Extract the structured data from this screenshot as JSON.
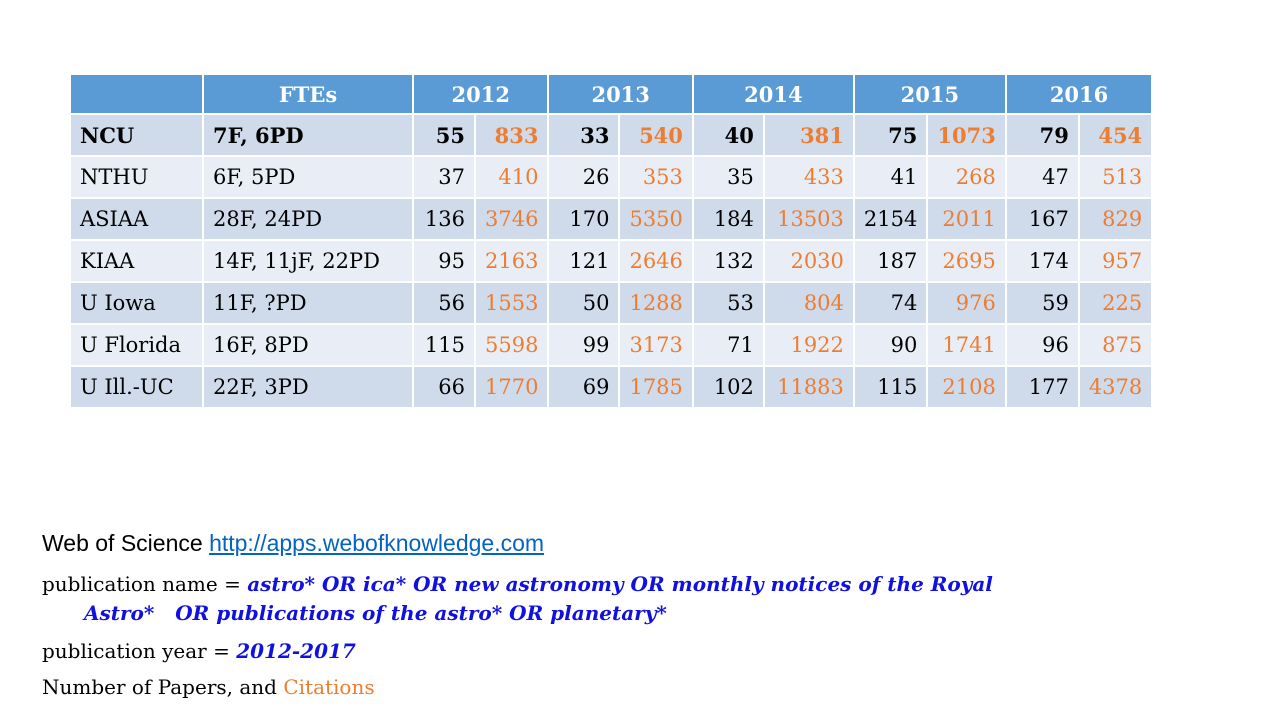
{
  "table": {
    "header": [
      "",
      "FTEs",
      "2012",
      "2013",
      "2014",
      "2015",
      "2016"
    ],
    "rows": [
      {
        "inst": "NCU",
        "fte": "7F, 6PD",
        "bold": true,
        "vals": [
          "55",
          "833",
          "33",
          "540",
          "40",
          "381",
          "75",
          "1073",
          "79",
          "454"
        ]
      },
      {
        "inst": "NTHU",
        "fte": "6F, 5PD",
        "bold": false,
        "vals": [
          "37",
          "410",
          "26",
          "353",
          "35",
          "433",
          "41",
          "268",
          "47",
          "513"
        ]
      },
      {
        "inst": "ASIAA",
        "fte": "28F, 24PD",
        "bold": false,
        "vals": [
          "136",
          "3746",
          "170",
          "5350",
          "184",
          "13503",
          "2154",
          "2011",
          "167",
          "829"
        ]
      },
      {
        "inst": "KIAA",
        "fte": "14F, 11jF, 22PD",
        "bold": false,
        "vals": [
          "95",
          "2163",
          "121",
          "2646",
          "132",
          "2030",
          "187",
          "2695",
          "174",
          "957"
        ]
      },
      {
        "inst": "U Iowa",
        "fte": "11F, ?PD",
        "bold": false,
        "vals": [
          "56",
          "1553",
          "50",
          "1288",
          "53",
          "804",
          "74",
          "976",
          "59",
          "225"
        ]
      },
      {
        "inst": "U Florida",
        "fte": "16F, 8PD",
        "bold": false,
        "vals": [
          "115",
          "5598",
          "99",
          "3173",
          "71",
          "1922",
          "90",
          "1741",
          "96",
          "875"
        ]
      },
      {
        "inst": "U Ill.-UC",
        "fte": "22F, 3PD",
        "bold": false,
        "vals": [
          "66",
          "1770",
          "69",
          "1785",
          "102",
          "11883",
          "115",
          "2108",
          "177",
          "4378"
        ]
      }
    ]
  },
  "notes": {
    "wos_label": "Web of Science",
    "wos_link": "http://apps.webofknowledge.com",
    "pubname_label": "publication name = ",
    "pubname_value_1": "astro* OR ica* OR new astronomy OR monthly notices of the Royal",
    "pubname_value_2": "Astro*   OR publications of the astro* OR planetary*",
    "pubyear_label": "publication year = ",
    "pubyear_value": "2012-2017",
    "count_label": "Number of Papers, and ",
    "count_citations": "Citations"
  },
  "colors": {
    "header_bg": "#5b9bd5",
    "row_dark": "#cfdaea",
    "row_light": "#e9eef6",
    "citations": "#ed7d31",
    "query": "#1010e0",
    "link": "#0563c1"
  }
}
